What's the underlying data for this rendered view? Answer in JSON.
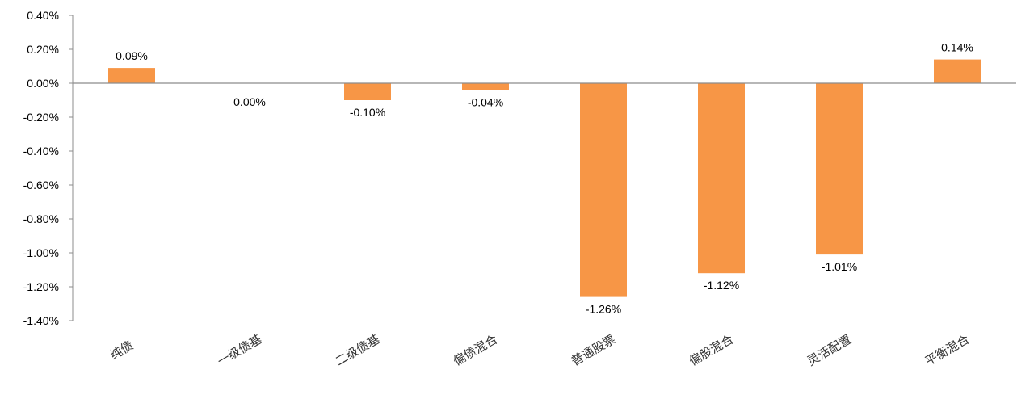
{
  "chart_data": {
    "type": "bar",
    "title": "",
    "xlabel": "",
    "ylabel": "",
    "categories": [
      "纯债",
      "一级债基",
      "二级债基",
      "偏债混合",
      "普通股票",
      "偏股混合",
      "灵活配置",
      "平衡混合"
    ],
    "values": [
      0.09,
      0.0,
      -0.1,
      -0.04,
      -1.26,
      -1.12,
      -1.01,
      0.14
    ],
    "data_labels": [
      "0.09%",
      "0.00%",
      "-0.10%",
      "-0.04%",
      "-1.26%",
      "-1.12%",
      "-1.01%",
      "0.14%"
    ],
    "value_unit": "%",
    "ylim": [
      -1.4,
      0.4
    ],
    "yticks": [
      0.4,
      0.2,
      0.0,
      -0.2,
      -0.4,
      -0.6,
      -0.8,
      -1.0,
      -1.2,
      -1.4
    ],
    "ytick_labels": [
      "0.40%",
      "0.20%",
      "0.00%",
      "-0.20%",
      "-0.40%",
      "-0.60%",
      "-0.80%",
      "-1.00%",
      "-1.20%",
      "-1.40%"
    ],
    "grid": false,
    "legend": "none",
    "bar_color": "#F79646"
  }
}
